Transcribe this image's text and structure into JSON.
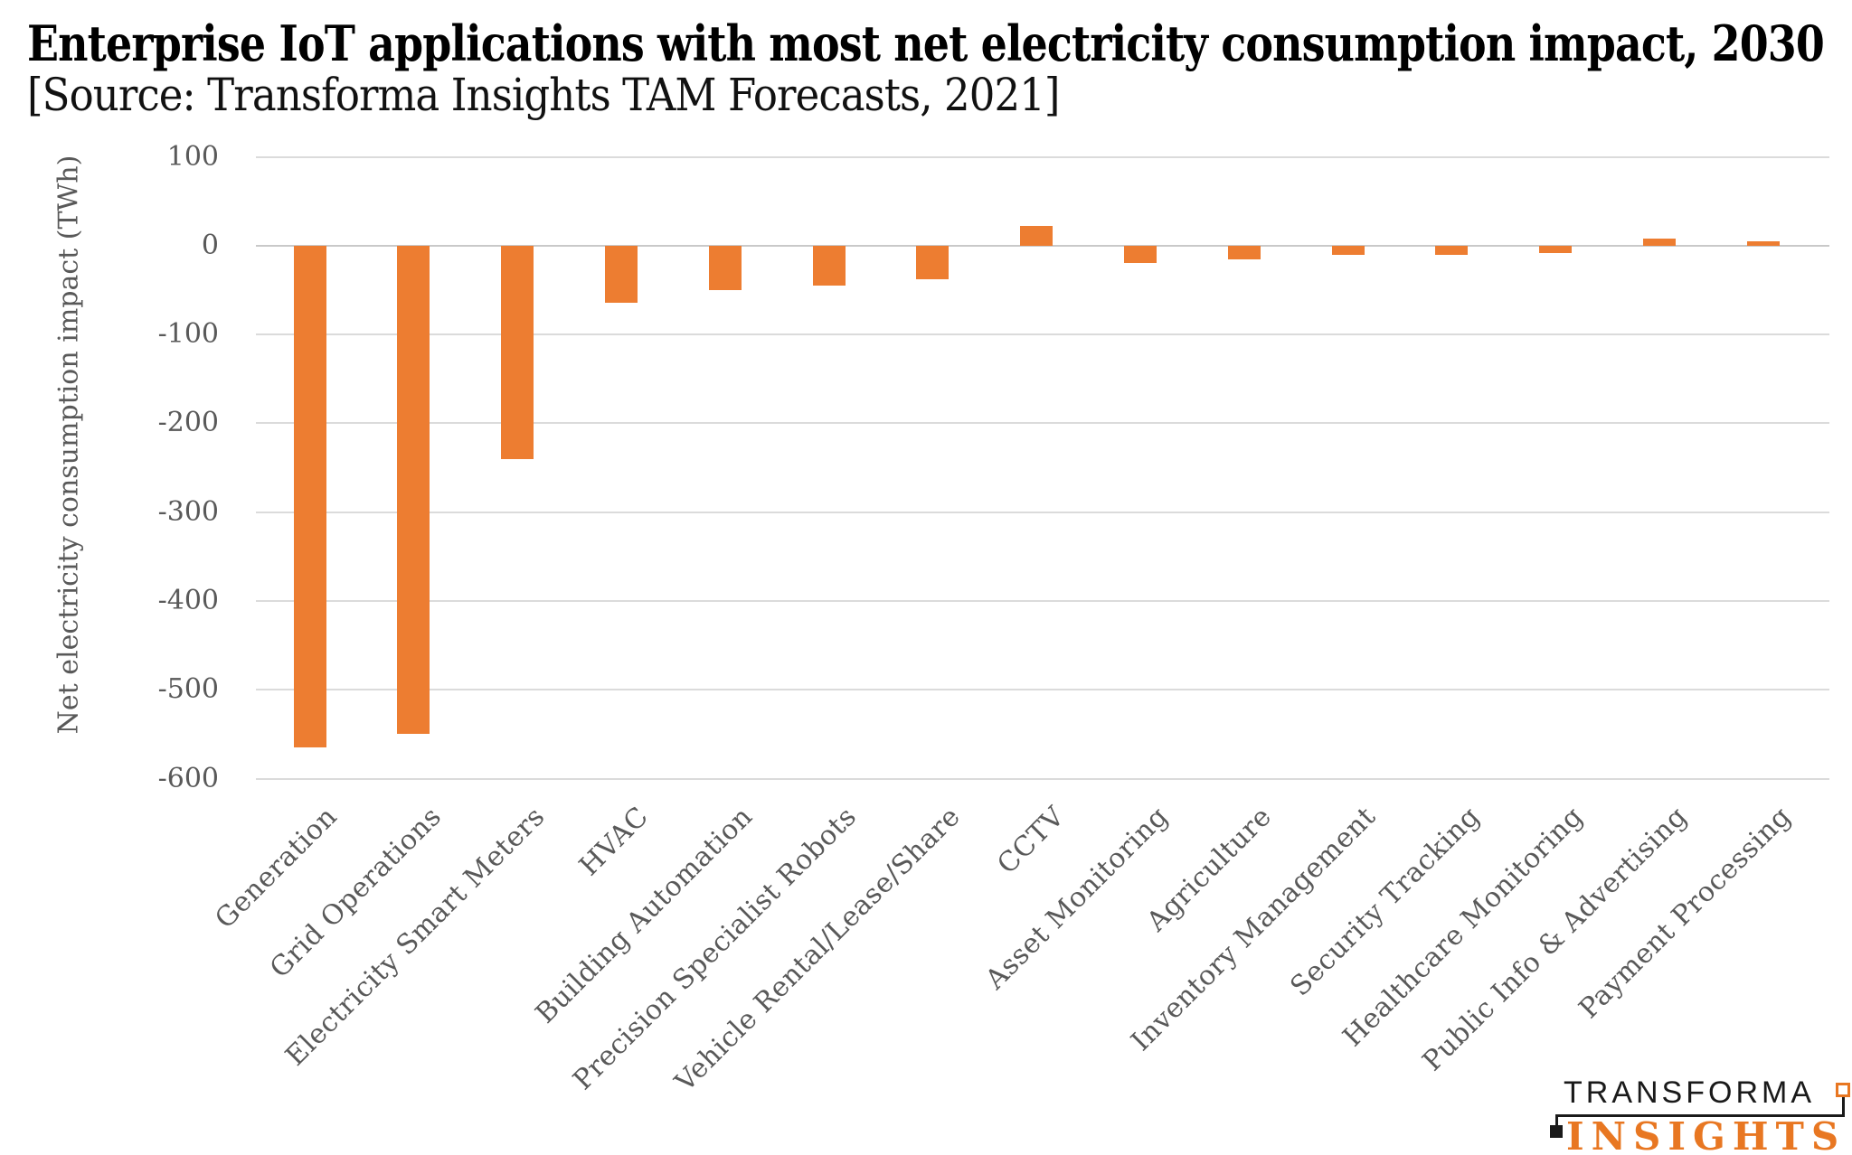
{
  "title": "Enterprise IoT applications with most net electricity consumption impact, 2030",
  "subtitle": "[Source: Transforma Insights TAM Forecasts, 2021]",
  "chart_data": {
    "type": "bar",
    "title": "Enterprise IoT applications with most net electricity consumption impact, 2030",
    "subtitle": "[Source: Transforma Insights TAM Forecasts, 2021]",
    "categories": [
      "Generation",
      "Grid Operations",
      "Electricity Smart Meters",
      "HVAC",
      "Building Automation",
      "Precision Specialist Robots",
      "Vehicle Rental/Lease/Share",
      "CCTV",
      "Asset Monitoring",
      "Agriculture",
      "Inventory Management",
      "Security Tracking",
      "Healthcare Monitoring",
      "Public Info & Advertising",
      "Payment Processing"
    ],
    "values": [
      -565,
      -550,
      -240,
      -64,
      -50,
      -45,
      -38,
      22,
      -20,
      -15,
      -10,
      -10,
      -8,
      8,
      5
    ],
    "unit": "TWh",
    "xlabel": "",
    "ylabel": "Net electricity consumption impact (TWh)",
    "ylim": [
      -600,
      100
    ],
    "yticks": [
      100,
      0,
      -100,
      -200,
      -300,
      -400,
      -500,
      -600
    ],
    "grid": true,
    "legend": "none",
    "bar_color": "#ED7D31"
  },
  "colors": {
    "bar": "#ED7D31",
    "axis_text": "#595959",
    "gridline": "#DBDBDB",
    "zero_line": "#C9C9C9",
    "title_text": "#000000",
    "logo_orange": "#E87722",
    "logo_black": "#1A1A1A",
    "background": "#FFFFFF"
  },
  "logo": {
    "top_text": "TRANSFORMA",
    "bottom_text": "INSIGHTS"
  }
}
